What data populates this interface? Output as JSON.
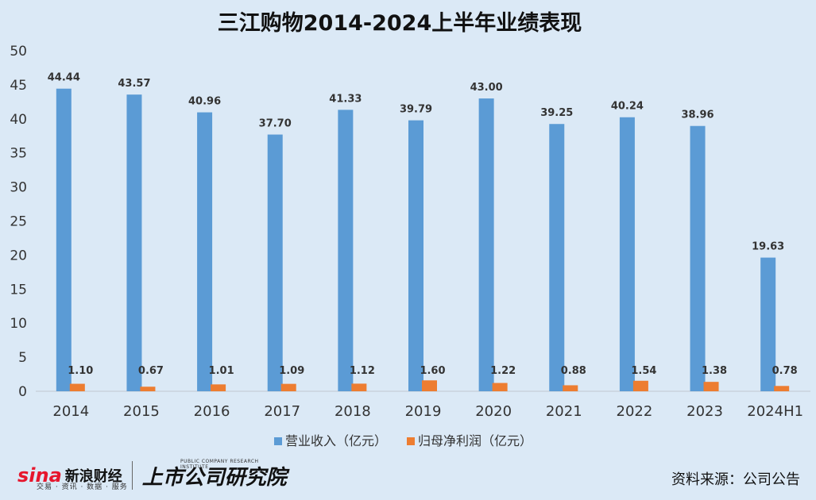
{
  "chart_data": {
    "type": "bar",
    "title": "三江购物2014-2024上半年业绩表现",
    "categories": [
      "2014",
      "2015",
      "2016",
      "2017",
      "2018",
      "2019",
      "2020",
      "2021",
      "2022",
      "2023",
      "2024H1"
    ],
    "series": [
      {
        "name": "营业收入（亿元）",
        "color": "#5b9bd5",
        "values": [
          44.44,
          43.57,
          40.96,
          37.7,
          41.33,
          39.79,
          43.0,
          39.25,
          40.24,
          38.96,
          19.63
        ],
        "labels": [
          "44.44",
          "43.57",
          "40.96",
          "37.70",
          "41.33",
          "39.79",
          "43.00",
          "39.25",
          "40.24",
          "38.96",
          "19.63"
        ]
      },
      {
        "name": "归母净利润（亿元）",
        "color": "#ed7d31",
        "values": [
          1.1,
          0.67,
          1.01,
          1.09,
          1.12,
          1.6,
          1.22,
          0.88,
          1.54,
          1.38,
          0.78
        ],
        "labels": [
          "1.10",
          "0.67",
          "1.01",
          "1.09",
          "1.12",
          "1.60",
          "1.22",
          "0.88",
          "1.54",
          "1.38",
          "0.78"
        ]
      }
    ],
    "ylim": [
      0,
      50
    ],
    "yticks": [
      "0",
      "5",
      "10",
      "15",
      "20",
      "25",
      "30",
      "35",
      "40",
      "45",
      "50"
    ],
    "grid": false,
    "legend": "bottom",
    "xlabel": "",
    "ylabel": ""
  },
  "footer": {
    "logo_sina": "sina",
    "logo_cn": "新浪财经",
    "logo_sub": "交易 · 资讯 · 数据 · 服务",
    "logo_brand": "上市公司研究院",
    "logo_brand_en": "PUBLIC COMPANY RESEARCH INSTITUTE",
    "source": "资料来源：公司公告"
  }
}
